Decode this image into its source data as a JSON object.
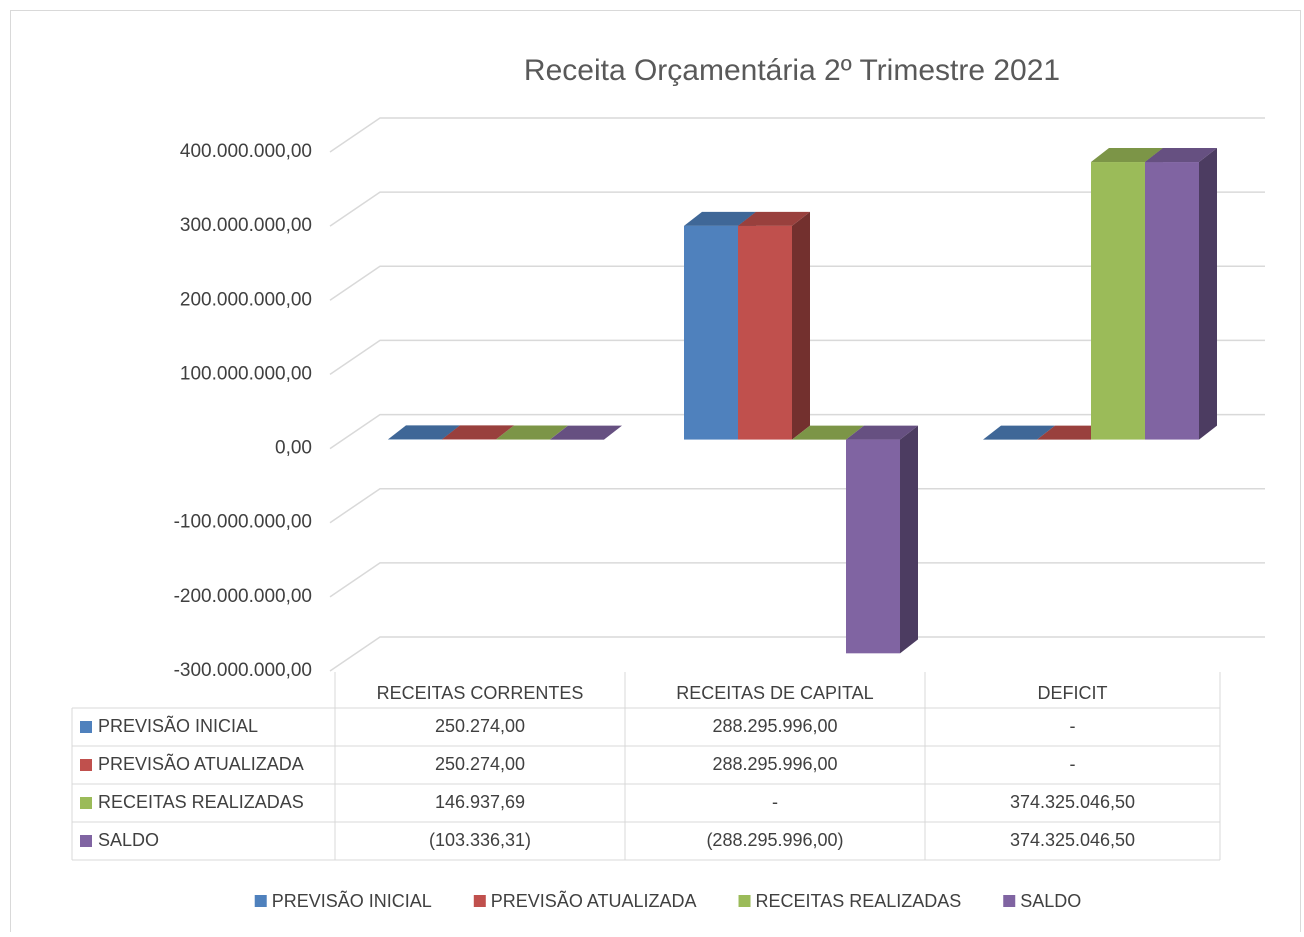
{
  "chart_data": {
    "type": "bar3d",
    "title": "Receita Orçamentária 2º Trimestre 2021",
    "categories": [
      "RECEITAS CORRENTES",
      "RECEITAS DE CAPITAL",
      "DEFICIT"
    ],
    "series": [
      {
        "name": "PREVISÃO INICIAL",
        "color": "#4f81bd",
        "values": [
          250274,
          288295996,
          0
        ],
        "value_labels": [
          "250.274,00",
          "288.295.996,00",
          "-"
        ]
      },
      {
        "name": "PREVISÃO ATUALIZADA",
        "color": "#c0504d",
        "values": [
          250274,
          288295996,
          0
        ],
        "value_labels": [
          "250.274,00",
          "288.295.996,00",
          "-"
        ]
      },
      {
        "name": "RECEITAS REALIZADAS",
        "color": "#9bbb59",
        "values": [
          146937.69,
          0,
          374325046.5
        ],
        "value_labels": [
          "146.937,69",
          "-",
          "374.325.046,50"
        ]
      },
      {
        "name": "SALDO",
        "color": "#8064a2",
        "values": [
          -103336.31,
          -288295996,
          374325046.5
        ],
        "value_labels": [
          "(103.336,31)",
          "(288.295.996,00)",
          "374.325.046,50"
        ]
      }
    ],
    "ylim": [
      -300000000,
      400000000
    ],
    "yticks": [
      {
        "value": -300000000,
        "label": "-300.000.000,00"
      },
      {
        "value": -200000000,
        "label": "-200.000.000,00"
      },
      {
        "value": -100000000,
        "label": "-100.000.000,00"
      },
      {
        "value": 0,
        "label": "0,00"
      },
      {
        "value": 100000000,
        "label": "100.000.000,00"
      },
      {
        "value": 200000000,
        "label": "200.000.000,00"
      },
      {
        "value": 300000000,
        "label": "300.000.000,00"
      },
      {
        "value": 400000000,
        "label": "400.000.000,00"
      }
    ],
    "grid": true,
    "legend": "bottom"
  }
}
